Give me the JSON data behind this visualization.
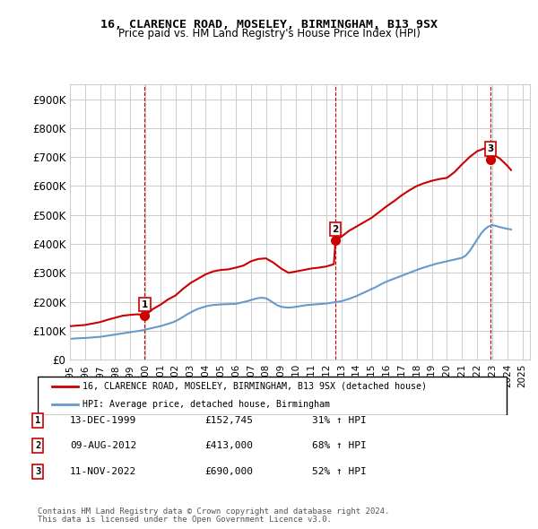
{
  "title": "16, CLARENCE ROAD, MOSELEY, BIRMINGHAM, B13 9SX",
  "subtitle": "Price paid vs. HM Land Registry's House Price Index (HPI)",
  "ylabel_ticks": [
    "£0",
    "£100K",
    "£200K",
    "£300K",
    "£400K",
    "£500K",
    "£600K",
    "£700K",
    "£800K",
    "£900K"
  ],
  "ytick_vals": [
    0,
    100000,
    200000,
    300000,
    400000,
    500000,
    600000,
    700000,
    800000,
    900000
  ],
  "ylim": [
    0,
    950000
  ],
  "xlim_start": 1995.0,
  "xlim_end": 2025.5,
  "transactions": [
    {
      "num": 1,
      "year": 1999.96,
      "price": 152745,
      "date": "13-DEC-1999",
      "price_str": "£152,745",
      "hpi_str": "31% ↑ HPI"
    },
    {
      "num": 2,
      "year": 2012.61,
      "price": 413000,
      "date": "09-AUG-2012",
      "price_str": "£413,000",
      "hpi_str": "68% ↑ HPI"
    },
    {
      "num": 3,
      "year": 2022.87,
      "price": 690000,
      "date": "11-NOV-2022",
      "price_str": "£690,000",
      "hpi_str": "52% ↑ HPI"
    }
  ],
  "hpi_years": [
    1995.0,
    1995.25,
    1995.5,
    1995.75,
    1996.0,
    1996.25,
    1996.5,
    1996.75,
    1997.0,
    1997.25,
    1997.5,
    1997.75,
    1998.0,
    1998.25,
    1998.5,
    1998.75,
    1999.0,
    1999.25,
    1999.5,
    1999.75,
    2000.0,
    2000.25,
    2000.5,
    2000.75,
    2001.0,
    2001.25,
    2001.5,
    2001.75,
    2002.0,
    2002.25,
    2002.5,
    2002.75,
    2003.0,
    2003.25,
    2003.5,
    2003.75,
    2004.0,
    2004.25,
    2004.5,
    2004.75,
    2005.0,
    2005.25,
    2005.5,
    2005.75,
    2006.0,
    2006.25,
    2006.5,
    2006.75,
    2007.0,
    2007.25,
    2007.5,
    2007.75,
    2008.0,
    2008.25,
    2008.5,
    2008.75,
    2009.0,
    2009.25,
    2009.5,
    2009.75,
    2010.0,
    2010.25,
    2010.5,
    2010.75,
    2011.0,
    2011.25,
    2011.5,
    2011.75,
    2012.0,
    2012.25,
    2012.5,
    2012.75,
    2013.0,
    2013.25,
    2013.5,
    2013.75,
    2014.0,
    2014.25,
    2014.5,
    2014.75,
    2015.0,
    2015.25,
    2015.5,
    2015.75,
    2016.0,
    2016.25,
    2016.5,
    2016.75,
    2017.0,
    2017.25,
    2017.5,
    2017.75,
    2018.0,
    2018.25,
    2018.5,
    2018.75,
    2019.0,
    2019.25,
    2019.5,
    2019.75,
    2020.0,
    2020.25,
    2020.5,
    2020.75,
    2021.0,
    2021.25,
    2021.5,
    2021.75,
    2022.0,
    2022.25,
    2022.5,
    2022.75,
    2023.0,
    2023.25,
    2023.5,
    2023.75,
    2024.0,
    2024.25
  ],
  "hpi_values": [
    72000,
    73000,
    74000,
    74500,
    75000,
    76000,
    77000,
    78000,
    79000,
    81000,
    83000,
    85000,
    87000,
    89000,
    91000,
    93000,
    95000,
    97000,
    99000,
    101000,
    104000,
    107000,
    110000,
    113000,
    116000,
    120000,
    124000,
    128000,
    133000,
    140000,
    148000,
    156000,
    163000,
    170000,
    176000,
    180000,
    184000,
    187000,
    189000,
    190000,
    191000,
    191500,
    192000,
    192500,
    193000,
    196000,
    199000,
    202000,
    206000,
    210000,
    213000,
    214000,
    212000,
    205000,
    196000,
    188000,
    183000,
    181000,
    180000,
    181000,
    183000,
    185000,
    187000,
    189000,
    190000,
    191000,
    192000,
    193000,
    194000,
    196000,
    198000,
    200000,
    202000,
    206000,
    210000,
    215000,
    220000,
    226000,
    232000,
    238000,
    244000,
    250000,
    257000,
    264000,
    270000,
    275000,
    280000,
    285000,
    290000,
    295000,
    300000,
    305000,
    310000,
    315000,
    319000,
    323000,
    327000,
    331000,
    334000,
    337000,
    340000,
    343000,
    346000,
    349000,
    352000,
    360000,
    375000,
    395000,
    415000,
    435000,
    450000,
    460000,
    465000,
    462000,
    458000,
    455000,
    452000,
    450000
  ],
  "red_line_years": [
    1995.0,
    1995.5,
    1996.0,
    1996.5,
    1997.0,
    1997.5,
    1998.0,
    1998.5,
    1999.0,
    1999.5,
    1999.96,
    2000.5,
    2001.0,
    2001.5,
    2002.0,
    2002.5,
    2003.0,
    2003.5,
    2004.0,
    2004.5,
    2005.0,
    2005.5,
    2006.0,
    2006.5,
    2007.0,
    2007.5,
    2008.0,
    2008.5,
    2009.0,
    2009.5,
    2010.0,
    2010.5,
    2011.0,
    2011.5,
    2012.0,
    2012.5,
    2012.61,
    2013.0,
    2013.5,
    2014.0,
    2014.5,
    2015.0,
    2015.5,
    2016.0,
    2016.5,
    2017.0,
    2017.5,
    2018.0,
    2018.5,
    2019.0,
    2019.5,
    2020.0,
    2020.5,
    2021.0,
    2021.5,
    2022.0,
    2022.5,
    2022.87,
    2023.0,
    2023.5,
    2024.0,
    2024.25
  ],
  "red_line_values": [
    116000,
    118000,
    120000,
    125000,
    130000,
    138000,
    145000,
    152000,
    155000,
    157000,
    152745,
    175000,
    190000,
    208000,
    222000,
    245000,
    265000,
    280000,
    295000,
    305000,
    310000,
    312000,
    318000,
    325000,
    340000,
    348000,
    350000,
    335000,
    315000,
    300000,
    305000,
    310000,
    315000,
    318000,
    322000,
    330000,
    413000,
    425000,
    445000,
    460000,
    475000,
    490000,
    510000,
    530000,
    548000,
    568000,
    585000,
    600000,
    610000,
    618000,
    624000,
    628000,
    648000,
    675000,
    700000,
    720000,
    730000,
    690000,
    710000,
    695000,
    670000,
    655000
  ],
  "line_color_red": "#cc0000",
  "line_color_blue": "#6699cc",
  "vline_color": "#cc0000",
  "dot_color_red": "#cc0000",
  "grid_color": "#cccccc",
  "bg_color": "#ffffff",
  "legend_label_red": "16, CLARENCE ROAD, MOSELEY, BIRMINGHAM, B13 9SX (detached house)",
  "legend_label_blue": "HPI: Average price, detached house, Birmingham",
  "footer1": "Contains HM Land Registry data © Crown copyright and database right 2024.",
  "footer2": "This data is licensed under the Open Government Licence v3.0.",
  "xtick_years": [
    1995,
    1996,
    1997,
    1998,
    1999,
    2000,
    2001,
    2002,
    2003,
    2004,
    2005,
    2006,
    2007,
    2008,
    2009,
    2010,
    2011,
    2012,
    2013,
    2014,
    2015,
    2016,
    2017,
    2018,
    2019,
    2020,
    2021,
    2022,
    2023,
    2024,
    2025
  ]
}
